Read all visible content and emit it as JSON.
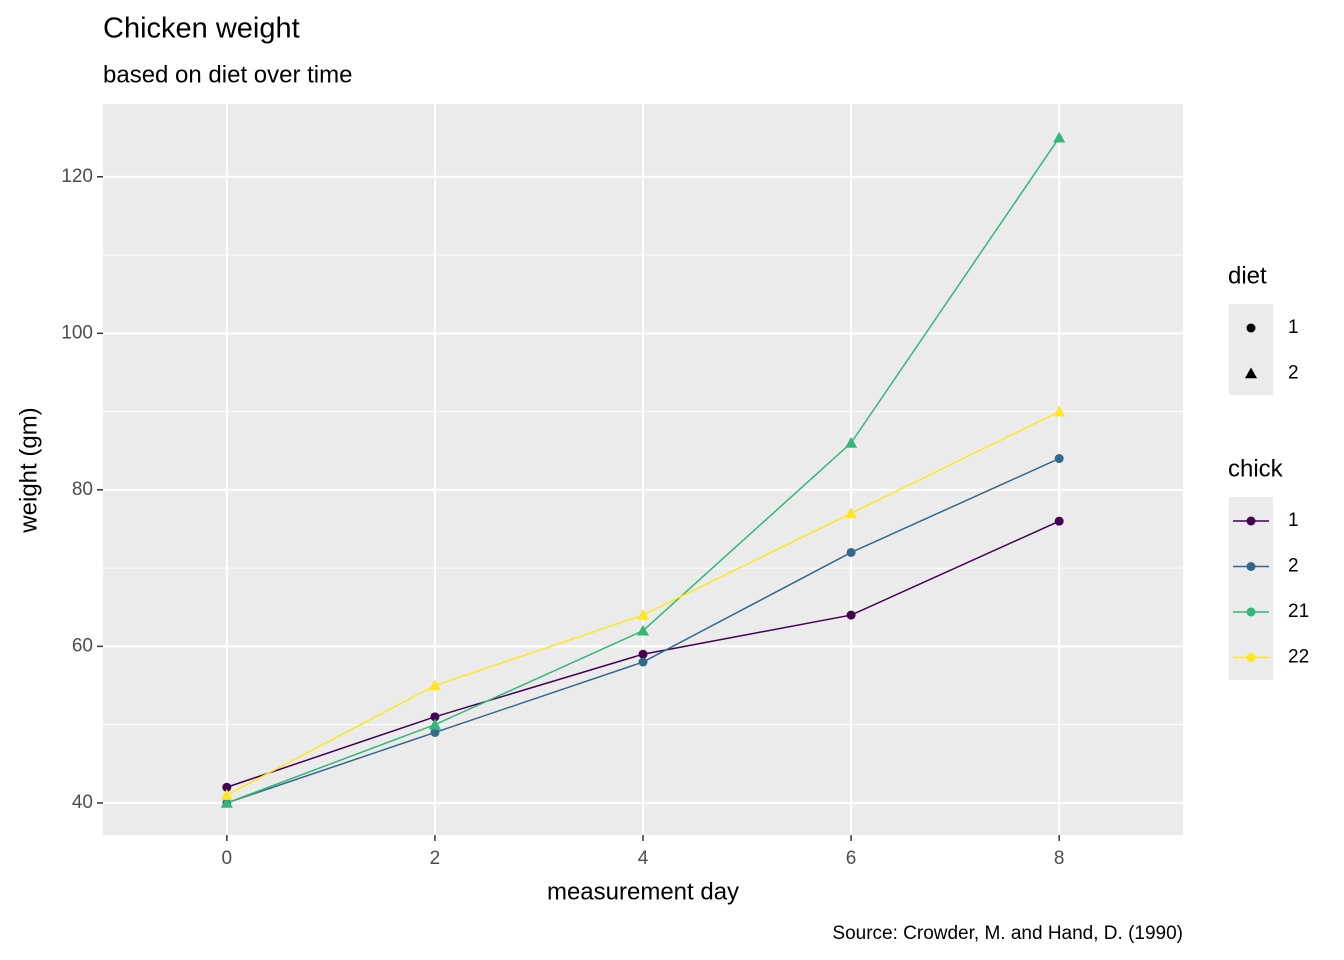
{
  "chart_data": {
    "type": "line",
    "title": "Chicken weight",
    "subtitle": "based on diet over time",
    "x_label": "measurement day",
    "y_label": "weight (gm)",
    "caption": "Source: Crowder, M. and Hand, D. (1990)",
    "x": [
      0,
      2,
      4,
      6,
      8
    ],
    "xlim": [
      -1.19,
      9.19
    ],
    "xticks": [
      0,
      2,
      4,
      6,
      8
    ],
    "ylim": [
      35.9,
      129.3
    ],
    "yticks": [
      40,
      60,
      80,
      100,
      120
    ],
    "grid": true,
    "legend_title": "chick",
    "series": [
      {
        "name": "1",
        "color": "#440154",
        "shape": "circle",
        "values": [
          42,
          51,
          59,
          64,
          76
        ]
      },
      {
        "name": "2",
        "color": "#31688e",
        "shape": "circle",
        "values": [
          40,
          49,
          58,
          72,
          84
        ]
      },
      {
        "name": "21",
        "color": "#35b779",
        "shape": "triangle",
        "values": [
          40,
          50,
          62,
          86,
          125
        ]
      },
      {
        "name": "22",
        "color": "#fde725",
        "shape": "triangle",
        "values": [
          41,
          55,
          64,
          77,
          90
        ]
      }
    ],
    "shape_legend": {
      "title": "diet",
      "entries": [
        {
          "label": "1",
          "shape": "circle"
        },
        {
          "label": "2",
          "shape": "triangle"
        }
      ]
    }
  }
}
